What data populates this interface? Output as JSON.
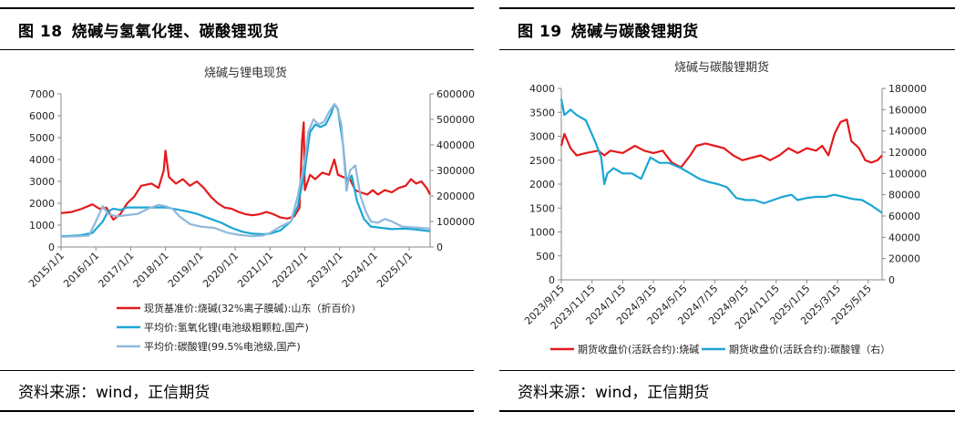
{
  "left": {
    "figure_number": "图 18",
    "figure_title": "烧碱与氢氧化锂、碳酸锂现货",
    "source": "资料来源：wind，正信期货"
  },
  "right": {
    "figure_number": "图 19",
    "figure_title": "烧碱与碳酸锂期货",
    "source": "资料来源：wind，正信期货"
  },
  "colors": {
    "red": "#e31a1c",
    "teal": "#1ba6d4",
    "lightblue": "#8fb8dc",
    "axis": "#888888"
  },
  "chart_data": [
    {
      "type": "line",
      "title": "烧碱与锂电现货",
      "x_ticks": [
        "2015/1/1",
        "2016/1/1",
        "2017/1/1",
        "2018/1/1",
        "2019/1/1",
        "2020/1/1",
        "2021/1/1",
        "2022/1/1",
        "2023/1/1",
        "2024/1/1",
        "2025/1/1"
      ],
      "y_left": {
        "min": 0,
        "max": 7000,
        "ticks": [
          "0",
          "1000",
          "2000",
          "3000",
          "4000",
          "5000",
          "6000",
          "7000"
        ]
      },
      "y_right": {
        "min": 0,
        "max": 600000,
        "ticks": [
          "0",
          "100000",
          "200000",
          "300000",
          "400000",
          "500000",
          "600000"
        ]
      },
      "series": [
        {
          "name": "现货基准价:烧碱(32%离子膜碱):山东（折百价)",
          "axis": "left",
          "color": "#e31a1c",
          "points": [
            [
              2015.0,
              1550
            ],
            [
              2015.3,
              1600
            ],
            [
              2015.6,
              1750
            ],
            [
              2015.9,
              1950
            ],
            [
              2016.1,
              1750
            ],
            [
              2016.3,
              1800
            ],
            [
              2016.5,
              1250
            ],
            [
              2016.7,
              1500
            ],
            [
              2016.9,
              2000
            ],
            [
              2017.1,
              2300
            ],
            [
              2017.3,
              2800
            ],
            [
              2017.6,
              2900
            ],
            [
              2017.8,
              2700
            ],
            [
              2017.95,
              3500
            ],
            [
              2018.0,
              4400
            ],
            [
              2018.1,
              3200
            ],
            [
              2018.3,
              2900
            ],
            [
              2018.5,
              3100
            ],
            [
              2018.7,
              2800
            ],
            [
              2018.9,
              3000
            ],
            [
              2019.1,
              2700
            ],
            [
              2019.3,
              2300
            ],
            [
              2019.5,
              2000
            ],
            [
              2019.7,
              1800
            ],
            [
              2019.9,
              1750
            ],
            [
              2020.1,
              1600
            ],
            [
              2020.3,
              1500
            ],
            [
              2020.5,
              1450
            ],
            [
              2020.7,
              1500
            ],
            [
              2020.9,
              1600
            ],
            [
              2021.1,
              1500
            ],
            [
              2021.3,
              1350
            ],
            [
              2021.5,
              1300
            ],
            [
              2021.7,
              1400
            ],
            [
              2021.85,
              1800
            ],
            [
              2021.92,
              4800
            ],
            [
              2021.97,
              5700
            ],
            [
              2022.0,
              2600
            ],
            [
              2022.15,
              3300
            ],
            [
              2022.3,
              3100
            ],
            [
              2022.5,
              3400
            ],
            [
              2022.7,
              3300
            ],
            [
              2022.85,
              4000
            ],
            [
              2022.95,
              3300
            ],
            [
              2023.1,
              3200
            ],
            [
              2023.3,
              3100
            ],
            [
              2023.45,
              2600
            ],
            [
              2023.6,
              2500
            ],
            [
              2023.8,
              2400
            ],
            [
              2023.95,
              2600
            ],
            [
              2024.1,
              2400
            ],
            [
              2024.3,
              2600
            ],
            [
              2024.5,
              2500
            ],
            [
              2024.7,
              2700
            ],
            [
              2024.9,
              2800
            ],
            [
              2025.05,
              3100
            ],
            [
              2025.2,
              2900
            ],
            [
              2025.35,
              3000
            ],
            [
              2025.5,
              2700
            ],
            [
              2025.6,
              2400
            ]
          ]
        },
        {
          "name": "平均价:氢氧化锂(电池级粗颗粒,国产)",
          "axis": "right",
          "color": "#1ba6d4",
          "points": [
            [
              2015.0,
              42000
            ],
            [
              2015.5,
              45000
            ],
            [
              2015.9,
              55000
            ],
            [
              2016.2,
              100000
            ],
            [
              2016.35,
              140000
            ],
            [
              2016.5,
              150000
            ],
            [
              2016.7,
              145000
            ],
            [
              2016.9,
              155000
            ],
            [
              2017.3,
              155000
            ],
            [
              2017.8,
              155000
            ],
            [
              2018.0,
              155000
            ],
            [
              2018.3,
              148000
            ],
            [
              2018.6,
              140000
            ],
            [
              2018.9,
              130000
            ],
            [
              2019.2,
              115000
            ],
            [
              2019.6,
              95000
            ],
            [
              2019.9,
              75000
            ],
            [
              2020.2,
              60000
            ],
            [
              2020.5,
              52000
            ],
            [
              2020.8,
              50000
            ],
            [
              2021.0,
              52000
            ],
            [
              2021.3,
              65000
            ],
            [
              2021.6,
              100000
            ],
            [
              2021.8,
              160000
            ],
            [
              2022.0,
              300000
            ],
            [
              2022.15,
              450000
            ],
            [
              2022.3,
              480000
            ],
            [
              2022.45,
              470000
            ],
            [
              2022.6,
              480000
            ],
            [
              2022.75,
              520000
            ],
            [
              2022.85,
              560000
            ],
            [
              2022.95,
              540000
            ],
            [
              2023.1,
              400000
            ],
            [
              2023.2,
              250000
            ],
            [
              2023.35,
              280000
            ],
            [
              2023.5,
              180000
            ],
            [
              2023.7,
              110000
            ],
            [
              2023.9,
              80000
            ],
            [
              2024.2,
              75000
            ],
            [
              2024.5,
              70000
            ],
            [
              2024.8,
              72000
            ],
            [
              2025.1,
              70000
            ],
            [
              2025.4,
              65000
            ],
            [
              2025.6,
              62000
            ]
          ]
        },
        {
          "name": "平均价:碳酸锂(99.5%电池级,国产)",
          "axis": "right",
          "color": "#8fb8dc",
          "points": [
            [
              2015.0,
              40000
            ],
            [
              2015.5,
              42000
            ],
            [
              2015.8,
              45000
            ],
            [
              2016.0,
              100000
            ],
            [
              2016.2,
              160000
            ],
            [
              2016.35,
              130000
            ],
            [
              2016.6,
              120000
            ],
            [
              2016.9,
              125000
            ],
            [
              2017.2,
              130000
            ],
            [
              2017.5,
              150000
            ],
            [
              2017.8,
              165000
            ],
            [
              2018.0,
              160000
            ],
            [
              2018.2,
              150000
            ],
            [
              2018.4,
              120000
            ],
            [
              2018.7,
              90000
            ],
            [
              2019.0,
              80000
            ],
            [
              2019.4,
              75000
            ],
            [
              2019.8,
              55000
            ],
            [
              2020.1,
              48000
            ],
            [
              2020.5,
              42000
            ],
            [
              2020.8,
              45000
            ],
            [
              2021.0,
              55000
            ],
            [
              2021.3,
              80000
            ],
            [
              2021.6,
              100000
            ],
            [
              2021.8,
              200000
            ],
            [
              2022.0,
              340000
            ],
            [
              2022.1,
              450000
            ],
            [
              2022.25,
              500000
            ],
            [
              2022.4,
              480000
            ],
            [
              2022.55,
              490000
            ],
            [
              2022.7,
              530000
            ],
            [
              2022.85,
              560000
            ],
            [
              2022.92,
              550000
            ],
            [
              2023.05,
              480000
            ],
            [
              2023.2,
              220000
            ],
            [
              2023.3,
              300000
            ],
            [
              2023.45,
              320000
            ],
            [
              2023.6,
              200000
            ],
            [
              2023.75,
              140000
            ],
            [
              2023.9,
              100000
            ],
            [
              2024.1,
              95000
            ],
            [
              2024.3,
              110000
            ],
            [
              2024.5,
              100000
            ],
            [
              2024.8,
              80000
            ],
            [
              2025.0,
              78000
            ],
            [
              2025.3,
              75000
            ],
            [
              2025.6,
              72000
            ]
          ]
        }
      ]
    },
    {
      "type": "line",
      "title": "烧碱与碳酸锂期货",
      "x_ticks": [
        "2023/9/15",
        "2023/11/15",
        "2024/1/15",
        "2024/3/15",
        "2024/5/15",
        "2024/7/15",
        "2024/9/15",
        "2024/11/15",
        "2025/1/15",
        "2025/3/15",
        "2025/5/15"
      ],
      "y_left": {
        "min": 0,
        "max": 4000,
        "ticks": [
          "0",
          "500",
          "1000",
          "1500",
          "2000",
          "2500",
          "3000",
          "3500",
          "4000"
        ]
      },
      "y_right": {
        "min": 0,
        "max": 180000,
        "ticks": [
          "0",
          "20000",
          "40000",
          "60000",
          "80000",
          "100000",
          "120000",
          "140000",
          "160000",
          "180000"
        ]
      },
      "series": [
        {
          "name": "期货收盘价(活跃合约):烧碱",
          "axis": "left",
          "color": "#e31a1c",
          "points": [
            [
              0,
              2800
            ],
            [
              0.1,
              3050
            ],
            [
              0.3,
              2750
            ],
            [
              0.5,
              2600
            ],
            [
              0.8,
              2650
            ],
            [
              1.2,
              2700
            ],
            [
              1.4,
              2600
            ],
            [
              1.6,
              2700
            ],
            [
              2.0,
              2650
            ],
            [
              2.4,
              2800
            ],
            [
              2.7,
              2700
            ],
            [
              3.0,
              2650
            ],
            [
              3.3,
              2700
            ],
            [
              3.6,
              2450
            ],
            [
              3.9,
              2350
            ],
            [
              4.2,
              2600
            ],
            [
              4.4,
              2800
            ],
            [
              4.7,
              2850
            ],
            [
              5.0,
              2800
            ],
            [
              5.3,
              2750
            ],
            [
              5.6,
              2600
            ],
            [
              5.9,
              2500
            ],
            [
              6.2,
              2550
            ],
            [
              6.5,
              2600
            ],
            [
              6.8,
              2500
            ],
            [
              7.1,
              2600
            ],
            [
              7.4,
              2750
            ],
            [
              7.7,
              2650
            ],
            [
              8.0,
              2750
            ],
            [
              8.3,
              2700
            ],
            [
              8.5,
              2800
            ],
            [
              8.7,
              2600
            ],
            [
              8.9,
              3050
            ],
            [
              9.1,
              3300
            ],
            [
              9.3,
              3350
            ],
            [
              9.45,
              2900
            ],
            [
              9.7,
              2750
            ],
            [
              9.9,
              2500
            ],
            [
              10.1,
              2450
            ],
            [
              10.3,
              2500
            ],
            [
              10.45,
              2600
            ]
          ]
        },
        {
          "name": "期货收盘价(活跃合约):碳酸锂（右）",
          "axis": "right",
          "color": "#1ba6d4",
          "points": [
            [
              0,
              170000
            ],
            [
              0.1,
              155000
            ],
            [
              0.3,
              160000
            ],
            [
              0.5,
              155000
            ],
            [
              0.8,
              150000
            ],
            [
              1.1,
              130000
            ],
            [
              1.3,
              115000
            ],
            [
              1.4,
              90000
            ],
            [
              1.5,
              100000
            ],
            [
              1.7,
              105000
            ],
            [
              2.0,
              100000
            ],
            [
              2.3,
              100000
            ],
            [
              2.6,
              95000
            ],
            [
              2.9,
              115000
            ],
            [
              3.2,
              110000
            ],
            [
              3.5,
              110000
            ],
            [
              3.9,
              105000
            ],
            [
              4.2,
              100000
            ],
            [
              4.5,
              95000
            ],
            [
              4.8,
              92000
            ],
            [
              5.1,
              90000
            ],
            [
              5.4,
              87000
            ],
            [
              5.7,
              77000
            ],
            [
              6.0,
              75000
            ],
            [
              6.3,
              75000
            ],
            [
              6.6,
              72000
            ],
            [
              6.9,
              75000
            ],
            [
              7.2,
              78000
            ],
            [
              7.5,
              80000
            ],
            [
              7.7,
              75000
            ],
            [
              8.0,
              77000
            ],
            [
              8.3,
              78000
            ],
            [
              8.6,
              78000
            ],
            [
              8.9,
              80000
            ],
            [
              9.2,
              78000
            ],
            [
              9.5,
              76000
            ],
            [
              9.8,
              75000
            ],
            [
              10.1,
              70000
            ],
            [
              10.3,
              66000
            ],
            [
              10.45,
              63000
            ]
          ]
        }
      ]
    }
  ]
}
